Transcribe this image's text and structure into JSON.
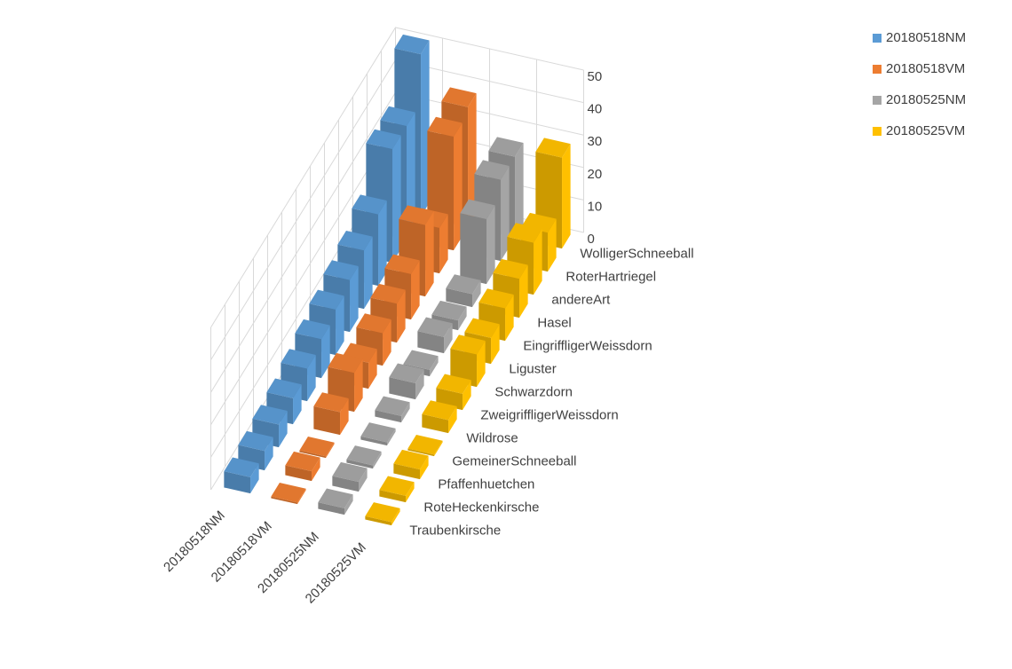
{
  "chart_data": {
    "type": "bar3d",
    "categories": [
      "Traubenkirsche",
      "RoteHeckenkirsche",
      "Pfaffenhuetchen",
      "GemeinerSchneeball",
      "Wildrose",
      "ZweigriffligerWeissdorn",
      "Schwarzdorn",
      "Liguster",
      "EingriffligerWeissdorn",
      "Hasel",
      "andereArt",
      "RoterHartriegel",
      "WolligerSchneeball"
    ],
    "series": [
      {
        "name": "20180518NM",
        "color": "#5b9bd5",
        "values": [
          5,
          6,
          7,
          8,
          10,
          12,
          14,
          16,
          18,
          22,
          35,
          35,
          50
        ]
      },
      {
        "name": "20180518VM",
        "color": "#ed7d31",
        "values": [
          0.5,
          3,
          0.5,
          7,
          12,
          8,
          10,
          12,
          14,
          22,
          14,
          35,
          37
        ]
      },
      {
        "name": "20180525NM",
        "color": "#a5a5a5",
        "values": [
          2,
          3,
          1,
          1,
          2,
          5,
          2,
          5,
          3,
          4,
          20,
          25,
          25
        ]
      },
      {
        "name": "20180525VM",
        "color": "#ffc000",
        "values": [
          1,
          2,
          3,
          0.5,
          4,
          5,
          10,
          8,
          10,
          12,
          16,
          12,
          28
        ]
      }
    ],
    "ylim": [
      0,
      50
    ],
    "yticks": [
      0,
      10,
      20,
      30,
      40,
      50
    ],
    "grid": true,
    "legend": "top-right"
  }
}
